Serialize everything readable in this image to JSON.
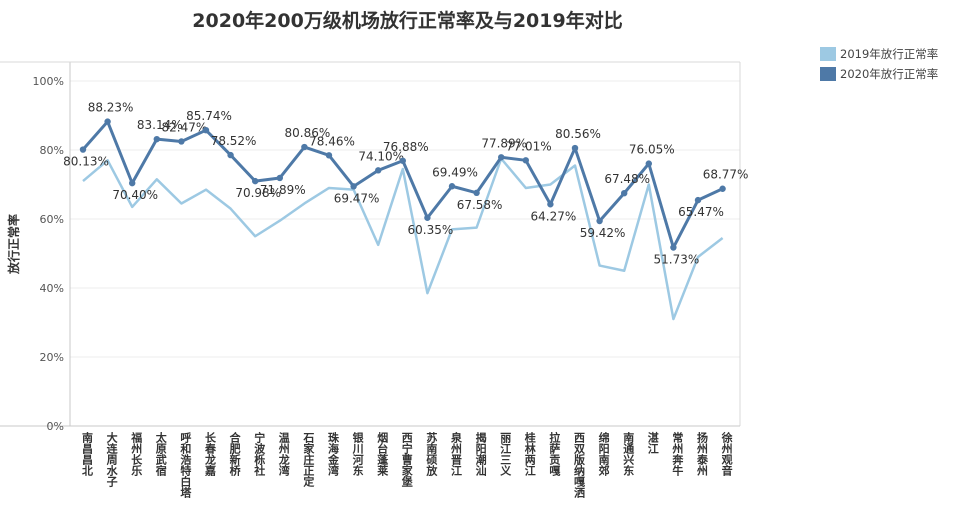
{
  "chart_data": {
    "type": "line",
    "title": "2020年200万级机场放行正常率及与2019年对比",
    "ylabel": "放行正常率",
    "xlabel": "",
    "ylim": [
      0,
      100
    ],
    "y_ticks": [
      "0%",
      "20%",
      "40%",
      "60%",
      "80%",
      "100%"
    ],
    "grid": true,
    "legend_position": "right",
    "categories": [
      "南昌昌北",
      "大连周水子",
      "福州长乐",
      "太原武宿",
      "呼和浩特白塔",
      "长春龙嘉",
      "合肥新桥",
      "宁波栎社",
      "温州龙湾",
      "石家庄正定",
      "珠海金湾",
      "银川河东",
      "烟台蓬莱",
      "西宁曹家堡",
      "苏南硕放",
      "泉州晋江",
      "揭阳潮汕",
      "丽江三义",
      "桂林两江",
      "拉萨贡嘎",
      "西双版纳嘎洒",
      "绵阳南郊",
      "南通兴东",
      "湛江",
      "常州奔牛",
      "扬州泰州",
      "徐州观音"
    ],
    "series": [
      {
        "name": "2019年放行正常率",
        "color": "#9dc9e3",
        "values": [
          71.0,
          77.0,
          63.5,
          71.5,
          64.5,
          68.5,
          63.0,
          55.0,
          59.5,
          64.5,
          69.0,
          68.5,
          52.5,
          74.5,
          38.5,
          57.0,
          57.5,
          77.5,
          69.0,
          70.0,
          75.5,
          46.5,
          45.0,
          70.0,
          31.0,
          49.0,
          54.5
        ],
        "labels": []
      },
      {
        "name": "2020年放行正常率",
        "color": "#4e79a7",
        "values": [
          80.13,
          88.23,
          70.4,
          83.14,
          82.47,
          85.74,
          78.52,
          70.98,
          71.89,
          80.86,
          78.46,
          69.47,
          74.1,
          76.88,
          60.35,
          69.49,
          67.58,
          77.89,
          77.01,
          64.27,
          80.56,
          59.42,
          67.48,
          76.05,
          51.73,
          65.47,
          68.77
        ],
        "labels": [
          "80.13%",
          "88.23%",
          "70.40%",
          "83.14%",
          "82.47%",
          "85.74%",
          "78.52%",
          "70.98%",
          "71.89%",
          "80.86%",
          "78.46%",
          "69.47%",
          "74.10%",
          "76.88%",
          "60.35%",
          "69.49%",
          "67.58%",
          "77.89%",
          "77.01%",
          "64.27%",
          "80.56%",
          "59.42%",
          "67.48%",
          "76.05%",
          "51.73%",
          "65.47%",
          "68.77%"
        ]
      }
    ]
  }
}
